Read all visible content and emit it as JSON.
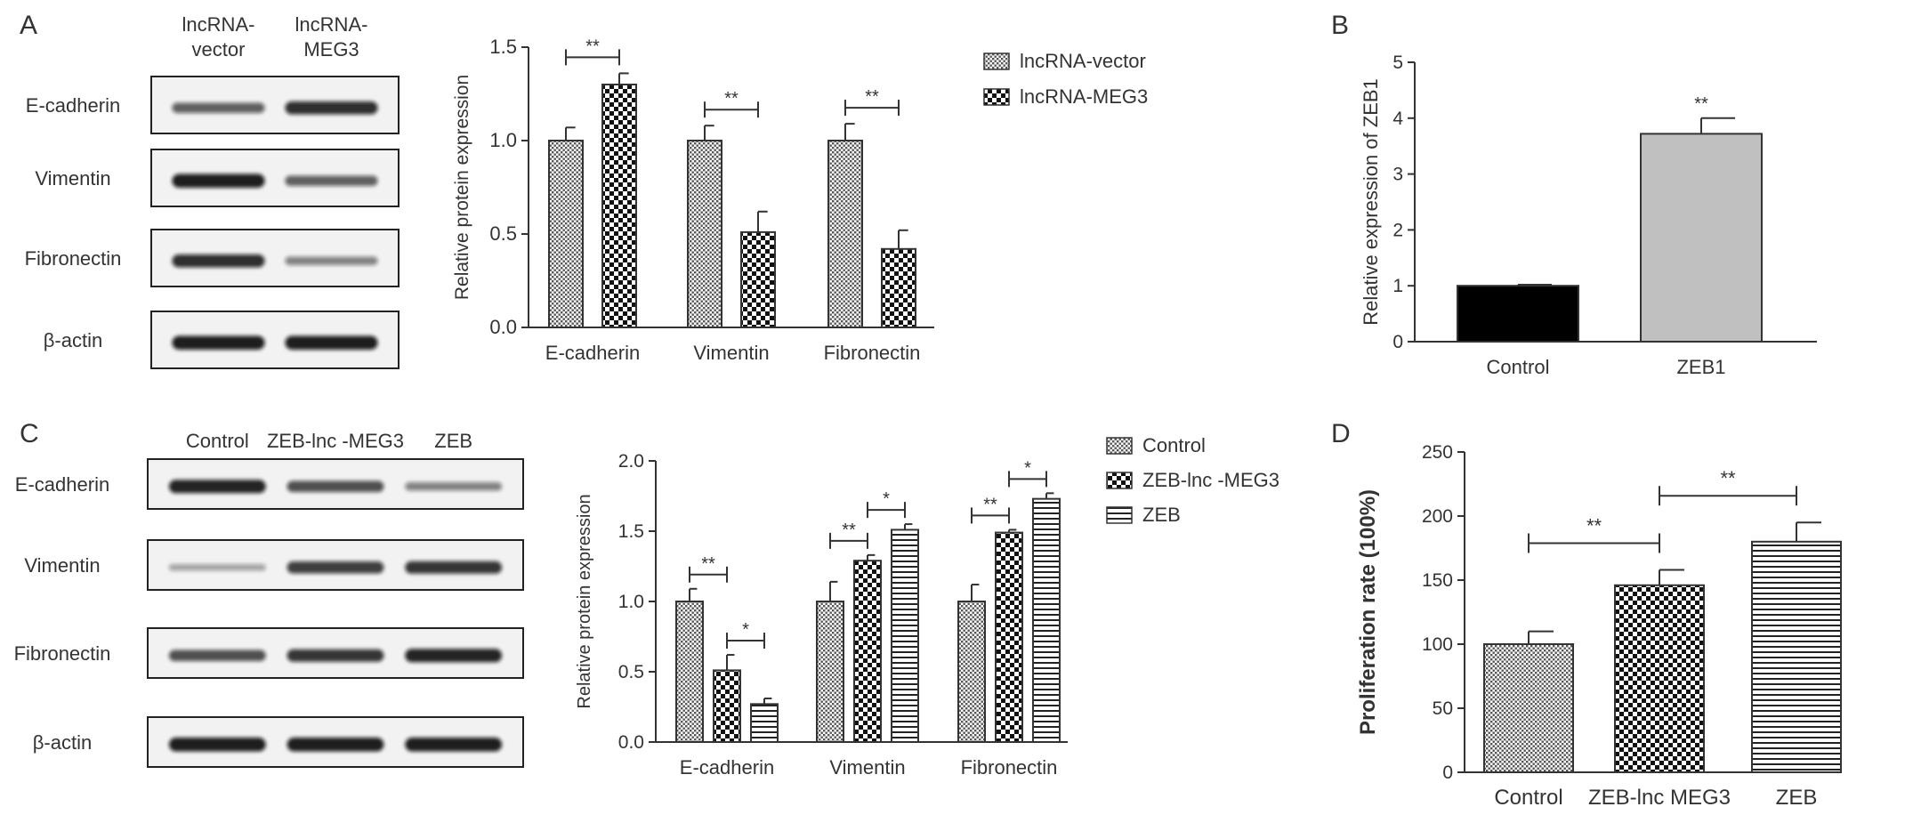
{
  "panels": {
    "A": {
      "label": "A",
      "blot": {
        "columns": [
          "lncRNA-\nvector",
          "lncRNA-\nMEG3"
        ],
        "rows": [
          {
            "name": "E-cadherin",
            "bands": [
              0.55,
              0.85
            ]
          },
          {
            "name": "Vimentin",
            "bands": [
              0.95,
              0.55
            ]
          },
          {
            "name": "Fibronectin",
            "bands": [
              0.85,
              0.35
            ]
          },
          {
            "name": "β-actin",
            "bands": [
              0.95,
              0.95
            ]
          }
        ]
      }
    },
    "B": {
      "label": "B"
    },
    "C": {
      "label": "C",
      "blot": {
        "columns": [
          "Control",
          "ZEB-lnc -MEG3",
          "ZEB"
        ],
        "rows": [
          {
            "name": "E-cadherin",
            "bands": [
              0.9,
              0.65,
              0.35
            ]
          },
          {
            "name": "Vimentin",
            "bands": [
              0.15,
              0.75,
              0.8
            ]
          },
          {
            "name": "Fibronectin",
            "bands": [
              0.65,
              0.8,
              0.9
            ]
          },
          {
            "name": "β-actin",
            "bands": [
              0.95,
              0.95,
              0.95
            ]
          }
        ]
      }
    },
    "D": {
      "label": "D"
    }
  },
  "chart_data": [
    {
      "id": "A",
      "type": "bar",
      "categories": [
        "E-cadherin",
        "Vimentin",
        "Fibronectin"
      ],
      "series": [
        {
          "name": "lncRNA-vector",
          "values": [
            1.0,
            1.0,
            1.0
          ],
          "errors": [
            0.07,
            0.08,
            0.09
          ],
          "pattern": "dots"
        },
        {
          "name": "lncRNA-MEG3",
          "values": [
            1.3,
            0.51,
            0.42
          ],
          "errors": [
            0.06,
            0.11,
            0.1
          ],
          "pattern": "checker"
        }
      ],
      "ylabel": "Relative protein expression",
      "ylim": [
        0,
        1.5
      ],
      "yticks": [
        "0.0",
        "0.5",
        "1.0",
        "1.5"
      ],
      "legend": "right",
      "significance": [
        {
          "category": 0,
          "from": 0,
          "to": 1,
          "label": "**"
        },
        {
          "category": 1,
          "from": 0,
          "to": 1,
          "label": "**"
        },
        {
          "category": 2,
          "from": 0,
          "to": 1,
          "label": "**"
        }
      ]
    },
    {
      "id": "B",
      "type": "bar",
      "categories": [
        "Control",
        "ZEB1"
      ],
      "values": [
        1.0,
        3.72
      ],
      "errors": [
        0.02,
        0.28
      ],
      "colors": [
        "#000000",
        "#c0c0c0"
      ],
      "ylabel": "Relative expression of ZEB1",
      "ylim": [
        0,
        5
      ],
      "yticks": [
        "0",
        "1",
        "2",
        "3",
        "4",
        "5"
      ],
      "annotations": [
        {
          "category": 1,
          "label": "**"
        }
      ]
    },
    {
      "id": "C",
      "type": "bar",
      "categories": [
        "E-cadherin",
        "Vimentin",
        "Fibronectin"
      ],
      "series": [
        {
          "name": "Control",
          "values": [
            1.0,
            1.0,
            1.0
          ],
          "errors": [
            0.09,
            0.14,
            0.12
          ],
          "pattern": "dots"
        },
        {
          "name": "ZEB-lnc -MEG3",
          "values": [
            0.51,
            1.29,
            1.49
          ],
          "errors": [
            0.11,
            0.04,
            0.02
          ],
          "pattern": "checker"
        },
        {
          "name": "ZEB",
          "values": [
            0.27,
            1.51,
            1.73
          ],
          "errors": [
            0.04,
            0.04,
            0.04
          ],
          "pattern": "hlines"
        }
      ],
      "ylabel": "Relative protein expression",
      "ylim": [
        0,
        2.0
      ],
      "yticks": [
        "0.0",
        "0.5",
        "1.0",
        "1.5",
        "2.0"
      ],
      "legend": "right",
      "significance": [
        {
          "category": 0,
          "from": 0,
          "to": 1,
          "label": "**"
        },
        {
          "category": 0,
          "from": 1,
          "to": 2,
          "label": "*"
        },
        {
          "category": 1,
          "from": 0,
          "to": 1,
          "label": "**"
        },
        {
          "category": 1,
          "from": 1,
          "to": 2,
          "label": "*"
        },
        {
          "category": 2,
          "from": 0,
          "to": 1,
          "label": "**"
        },
        {
          "category": 2,
          "from": 1,
          "to": 2,
          "label": "*"
        }
      ]
    },
    {
      "id": "D",
      "type": "bar",
      "categories": [
        "Control",
        "ZEB-lnc MEG3",
        "ZEB"
      ],
      "values": [
        100,
        146,
        180
      ],
      "errors": [
        10,
        12,
        15
      ],
      "patterns": [
        "dots",
        "checker",
        "hlines"
      ],
      "ylabel": "Proliferation rate (100%)",
      "ylim": [
        0,
        250
      ],
      "yticks": [
        "0",
        "50",
        "100",
        "150",
        "200",
        "250"
      ],
      "significance": [
        {
          "from": 0,
          "to": 1,
          "label": "**"
        },
        {
          "from": 1,
          "to": 2,
          "label": "**"
        }
      ]
    }
  ]
}
